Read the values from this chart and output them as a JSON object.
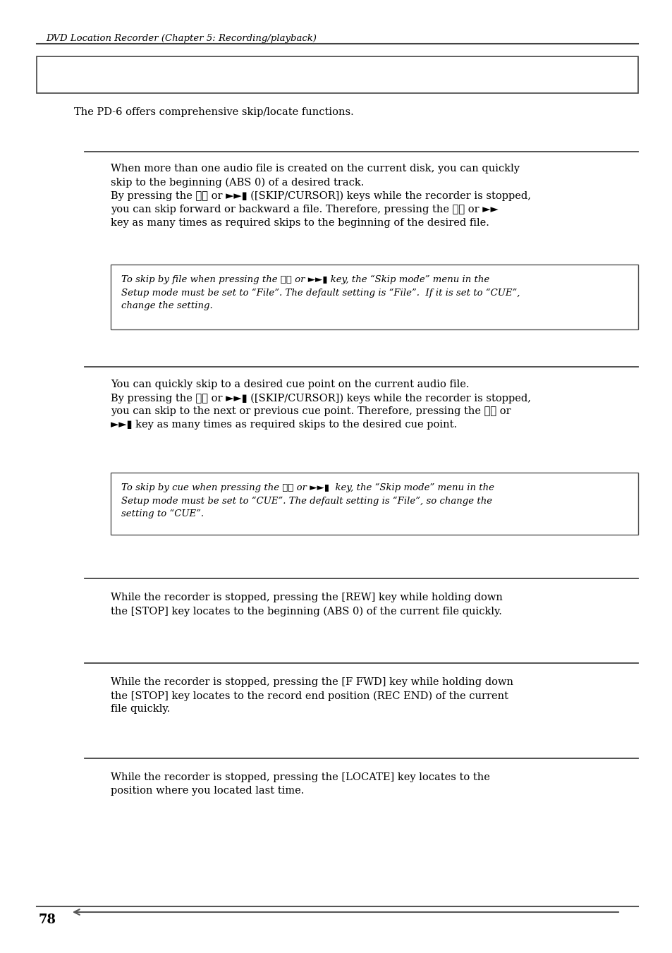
{
  "bg_color": "#ffffff",
  "text_color": "#000000",
  "header_text": "DVD Location Recorder (Chapter 5: Recording/playback)",
  "intro_text": "The PD-6 offers comprehensive skip/locate functions.",
  "section1_body_line1": "When more than one audio file is created on the current disk, you can quickly",
  "section1_body_line2": "skip to the beginning (ABS 0) of a desired track.",
  "section1_body_line3": "By pressing the ⧖⧖ or ►►▮ ([SKIP/CURSOR]) keys while the recorder is stopped,",
  "section1_body_line4": "you can skip forward or backward a file. Therefore, pressing the ⧖⧖ or ►►",
  "section1_body_line5": "key as many times as required skips to the beginning of the desired file.",
  "section1_note_line1": "To skip by file when pressing the ⧖⧖ or ►►▮ key, the “Skip mode” menu in the",
  "section1_note_line2": "Setup mode must be set to “File”. The default setting is “File”.  If it is set to “CUE”,",
  "section1_note_line3": "change the setting.",
  "section2_body_line1": "You can quickly skip to a desired cue point on the current audio file.",
  "section2_body_line2": "By pressing the ⧖⧖ or ►►▮ ([SKIP/CURSOR]) keys while the recorder is stopped,",
  "section2_body_line3": "you can skip to the next or previous cue point. Therefore, pressing the ⧖⧖ or",
  "section2_body_line4": "►►▮ key as many times as required skips to the desired cue point.",
  "section2_note_line1": "To skip by cue when pressing the ⧖⧖ or ►►▮  key, the “Skip mode” menu in the",
  "section2_note_line2": "Setup mode must be set to “CUE”. The default setting is “File”, so change the",
  "section2_note_line3": "setting to “CUE”.",
  "section3_body_line1": "While the recorder is stopped, pressing the [REW] key while holding down",
  "section3_body_line2": "the [STOP] key locates to the beginning (ABS 0) of the current file quickly.",
  "section4_body_line1": "While the recorder is stopped, pressing the [F FWD] key while holding down",
  "section4_body_line2": "the [STOP] key locates to the record end position (REC END) of the current",
  "section4_body_line3": "file quickly.",
  "section5_body_line1": "While the recorder is stopped, pressing the [LOCATE] key locates to the",
  "section5_body_line2": "position where you located last time.",
  "footer_page": "78",
  "font_size_header": 9.5,
  "font_size_body": 10.5,
  "font_size_note": 9.5,
  "font_size_footer": 13
}
